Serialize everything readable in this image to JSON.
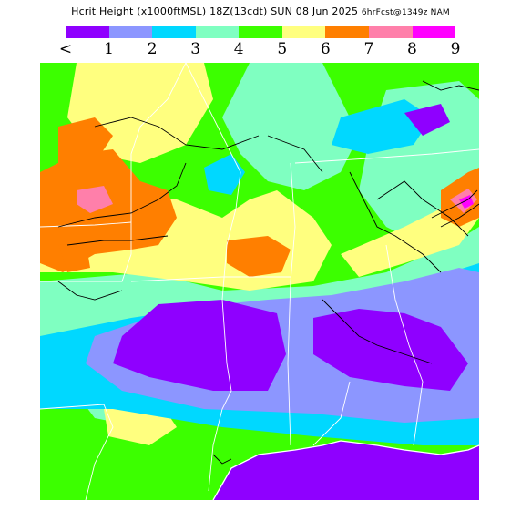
{
  "header": {
    "title_main": "Hcrit Height",
    "title_units": "(x1000ftMSL)",
    "title_time": "18Z(13cdt) SUN 08 Jun 2025",
    "title_product": "6hrFcst@1349z NAM"
  },
  "legend": {
    "swatches": [
      "#8f00ff",
      "#8c96ff",
      "#00d8ff",
      "#7fffc1",
      "#3cff00",
      "#ffff7f",
      "#ff7f00",
      "#ff7faa",
      "#ff00ff"
    ],
    "labels": [
      "<",
      "1",
      "2",
      "3",
      "4",
      "5",
      "6",
      "7",
      "8",
      "9"
    ]
  },
  "map": {
    "icon": "weather-forecast-map",
    "colors": {
      "lt1": "#8f00ff",
      "c1_2": "#8c96ff",
      "c2_3": "#00d8ff",
      "c3_4": "#7fffc1",
      "c4_5": "#3cff00",
      "c5_6": "#ffff7f",
      "c6_7": "#ff7f00",
      "c7_8": "#ff7faa",
      "c8_9": "#ff00ff",
      "water": "#8f00ff",
      "coast": "#ffffff",
      "border": "#ffffff",
      "terrain": "#000000"
    }
  }
}
